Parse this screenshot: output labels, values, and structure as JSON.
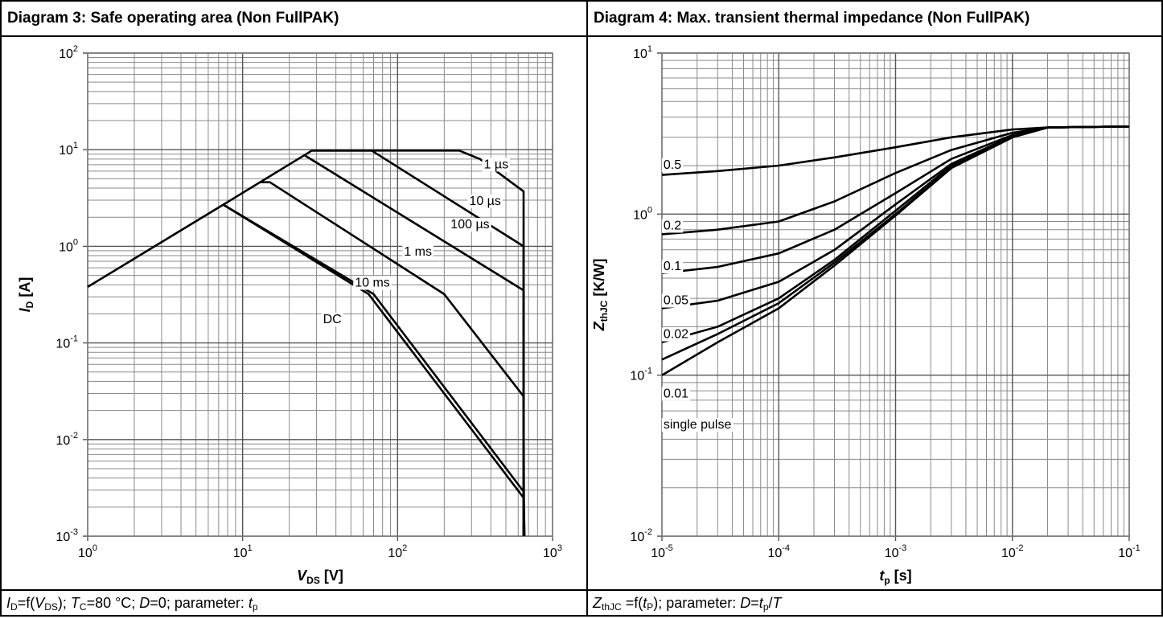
{
  "panels": [
    {
      "title": "Diagram 3: Safe operating area (Non FullPAK)",
      "caption_parts": [
        {
          "t": "I",
          "s": "i"
        },
        {
          "t": "D",
          "s": "sub"
        },
        {
          "t": "=f("
        },
        {
          "t": "V",
          "s": "i"
        },
        {
          "t": "DS",
          "s": "sub"
        },
        {
          "t": "); "
        },
        {
          "t": "T",
          "s": "i"
        },
        {
          "t": "C",
          "s": "sub"
        },
        {
          "t": "=80 °C; "
        },
        {
          "t": "D",
          "s": "i"
        },
        {
          "t": "=0; parameter: "
        },
        {
          "t": "t",
          "s": "i"
        },
        {
          "t": "p",
          "s": "sub"
        }
      ]
    },
    {
      "title": "Diagram 4: Max. transient thermal impedance (Non FullPAK)",
      "caption_parts": [
        {
          "t": "Z",
          "s": "i"
        },
        {
          "t": "thJC",
          "s": "sub"
        },
        {
          "t": " =f("
        },
        {
          "t": "t",
          "s": "i"
        },
        {
          "t": "P",
          "s": "sub"
        },
        {
          "t": "); parameter: "
        },
        {
          "t": "D",
          "s": "i"
        },
        {
          "t": "="
        },
        {
          "t": "t",
          "s": "i"
        },
        {
          "t": "p",
          "s": "sub"
        },
        {
          "t": "/"
        },
        {
          "t": "T",
          "s": "i"
        }
      ]
    }
  ],
  "chart_data": [
    {
      "type": "line",
      "title": "Diagram 3: Safe operating area (Non FullPAK)",
      "xlabel": {
        "main": "V",
        "sub": "DS",
        "unit": " [V]"
      },
      "ylabel": {
        "main": "I",
        "sub": "D",
        "unit": " [A]"
      },
      "xscale": "log",
      "yscale": "log",
      "xlim": [
        1,
        1000
      ],
      "ylim": [
        0.001,
        100
      ],
      "x_ticks": [
        {
          "base": "10",
          "exp": "0"
        },
        {
          "base": "10",
          "exp": "1"
        },
        {
          "base": "10",
          "exp": "2"
        },
        {
          "base": "10",
          "exp": "3"
        }
      ],
      "y_ticks": [
        {
          "base": "10",
          "exp": "-3"
        },
        {
          "base": "10",
          "exp": "-2"
        },
        {
          "base": "10",
          "exp": "-1"
        },
        {
          "base": "10",
          "exp": "0"
        },
        {
          "base": "10",
          "exp": "1"
        },
        {
          "base": "10",
          "exp": "2"
        }
      ],
      "grid": true,
      "line_color": "#000000",
      "series": [
        {
          "name": "1 µs",
          "label_at": [
            360,
            7.2
          ],
          "points": [
            [
              1,
              0.38
            ],
            [
              7.5,
              2.7
            ],
            [
              28,
              9.8
            ],
            [
              250,
              9.8
            ],
            [
              340,
              8.0
            ],
            [
              650,
              3.7
            ],
            [
              650,
              0.001
            ]
          ]
        },
        {
          "name": "10 µs",
          "label_at": [
            290,
            3.0
          ],
          "points": [
            [
              28,
              9.8
            ],
            [
              68,
              9.8
            ],
            [
              650,
              1.0
            ],
            [
              650,
              0.001
            ]
          ]
        },
        {
          "name": "100 µs",
          "label_at": [
            220,
            1.72
          ],
          "points": [
            [
              25,
              8.8
            ],
            [
              650,
              0.35
            ],
            [
              650,
              0.001
            ]
          ]
        },
        {
          "name": "1 ms",
          "label_at": [
            110,
            0.9
          ],
          "points": [
            [
              13,
              4.6
            ],
            [
              15,
              4.6
            ],
            [
              200,
              0.32
            ],
            [
              650,
              0.028
            ],
            [
              655,
              0.001
            ]
          ]
        },
        {
          "name": "10 ms",
          "label_at": [
            53,
            0.43
          ],
          "points": [
            [
              7.5,
              2.7
            ],
            [
              70,
              0.32
            ],
            [
              650,
              0.0029
            ],
            [
              660,
              0.001
            ]
          ]
        },
        {
          "name": "DC",
          "label_at": [
            33,
            0.18
          ],
          "points": [
            [
              7.5,
              2.7
            ],
            [
              65,
              0.32
            ],
            [
              650,
              0.0025
            ],
            [
              655,
              0.001
            ]
          ]
        }
      ]
    },
    {
      "type": "line",
      "title": "Diagram 4: Max. transient thermal impedance (Non FullPAK)",
      "xlabel": {
        "main": "t",
        "sub": "p",
        "unit": " [s]"
      },
      "ylabel": {
        "main": "Z",
        "sub": "thJC",
        "unit": " [K/W]"
      },
      "xscale": "log",
      "yscale": "log",
      "xlim": [
        1e-05,
        0.1
      ],
      "ylim": [
        0.01,
        10
      ],
      "x_ticks": [
        {
          "base": "10",
          "exp": "-5"
        },
        {
          "base": "10",
          "exp": "-4"
        },
        {
          "base": "10",
          "exp": "-3"
        },
        {
          "base": "10",
          "exp": "-2"
        },
        {
          "base": "10",
          "exp": "-1"
        }
      ],
      "y_ticks": [
        {
          "base": "10",
          "exp": "-2"
        },
        {
          "base": "10",
          "exp": "-1"
        },
        {
          "base": "10",
          "exp": "0"
        },
        {
          "base": "10",
          "exp": "1"
        }
      ],
      "grid": true,
      "line_color": "#000000",
      "series": [
        {
          "name": "0.5",
          "label_at": [
            1.03e-05,
            2.05
          ],
          "points": [
            [
              1e-05,
              1.75
            ],
            [
              3e-05,
              1.85
            ],
            [
              0.0001,
              2.0
            ],
            [
              0.0003,
              2.25
            ],
            [
              0.001,
              2.6
            ],
            [
              0.003,
              3.0
            ],
            [
              0.01,
              3.35
            ],
            [
              0.02,
              3.45
            ],
            [
              0.1,
              3.5
            ]
          ]
        },
        {
          "name": "0.2",
          "label_at": [
            1.03e-05,
            0.86
          ],
          "points": [
            [
              1e-05,
              0.75
            ],
            [
              3e-05,
              0.8
            ],
            [
              0.0001,
              0.9
            ],
            [
              0.0003,
              1.2
            ],
            [
              0.001,
              1.8
            ],
            [
              0.003,
              2.5
            ],
            [
              0.01,
              3.2
            ],
            [
              0.02,
              3.45
            ],
            [
              0.1,
              3.5
            ]
          ]
        },
        {
          "name": "0.1",
          "label_at": [
            1.03e-05,
            0.48
          ],
          "points": [
            [
              1e-05,
              0.43
            ],
            [
              3e-05,
              0.47
            ],
            [
              0.0001,
              0.57
            ],
            [
              0.0003,
              0.8
            ],
            [
              0.001,
              1.35
            ],
            [
              0.003,
              2.2
            ],
            [
              0.01,
              3.1
            ],
            [
              0.02,
              3.45
            ],
            [
              0.1,
              3.5
            ]
          ]
        },
        {
          "name": "0.05",
          "label_at": [
            1.03e-05,
            0.295
          ],
          "points": [
            [
              1e-05,
              0.26
            ],
            [
              3e-05,
              0.29
            ],
            [
              0.0001,
              0.38
            ],
            [
              0.0003,
              0.6
            ],
            [
              0.001,
              1.15
            ],
            [
              0.003,
              2.05
            ],
            [
              0.01,
              3.05
            ],
            [
              0.02,
              3.45
            ],
            [
              0.1,
              3.5
            ]
          ]
        },
        {
          "name": "0.02",
          "label_at": [
            1.03e-05,
            0.182
          ],
          "points": [
            [
              1e-05,
              0.16
            ],
            [
              3e-05,
              0.2
            ],
            [
              0.0001,
              0.3
            ],
            [
              0.0003,
              0.52
            ],
            [
              0.001,
              1.05
            ],
            [
              0.003,
              2.0
            ],
            [
              0.01,
              3.05
            ],
            [
              0.02,
              3.45
            ],
            [
              0.1,
              3.5
            ]
          ]
        },
        {
          "name": "0.01",
          "label_at": [
            1.03e-05,
            0.078
          ],
          "points": [
            [
              1e-05,
              0.125
            ],
            [
              3e-05,
              0.18
            ],
            [
              0.0001,
              0.28
            ],
            [
              0.0003,
              0.5
            ],
            [
              0.001,
              1.0
            ],
            [
              0.003,
              1.95
            ],
            [
              0.01,
              3.0
            ],
            [
              0.02,
              3.45
            ],
            [
              0.1,
              3.5
            ]
          ]
        },
        {
          "name": "single pulse",
          "label_at": [
            1.03e-05,
            0.05
          ],
          "points": [
            [
              1e-05,
              0.1
            ],
            [
              3e-05,
              0.16
            ],
            [
              0.0001,
              0.26
            ],
            [
              0.0003,
              0.48
            ],
            [
              0.001,
              0.98
            ],
            [
              0.003,
              1.93
            ],
            [
              0.01,
              3.0
            ],
            [
              0.02,
              3.45
            ],
            [
              0.1,
              3.5
            ]
          ]
        }
      ]
    }
  ]
}
